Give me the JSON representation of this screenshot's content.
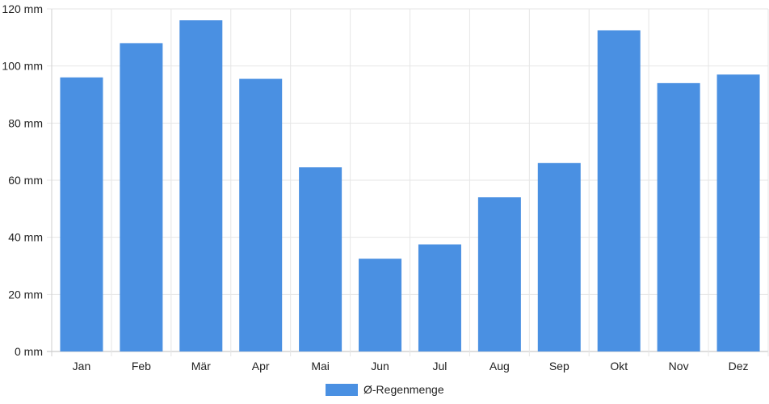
{
  "chart_data": {
    "type": "bar",
    "categories": [
      "Jan",
      "Feb",
      "Mär",
      "Apr",
      "Mai",
      "Jun",
      "Jul",
      "Aug",
      "Sep",
      "Okt",
      "Nov",
      "Dez"
    ],
    "series": [
      {
        "name": "Ø-Regenmenge",
        "color": "#4a90e2",
        "values": [
          96,
          108,
          116,
          95.5,
          64.5,
          32.5,
          37.5,
          54,
          66,
          112.5,
          94,
          97
        ]
      }
    ],
    "y_ticks": [
      "0 mm",
      "20 mm",
      "40 mm",
      "60 mm",
      "80 mm",
      "100 mm",
      "120 mm"
    ],
    "ylim": [
      0,
      120
    ],
    "y_unit": "mm",
    "grid": true,
    "legend_position": "bottom-center"
  }
}
